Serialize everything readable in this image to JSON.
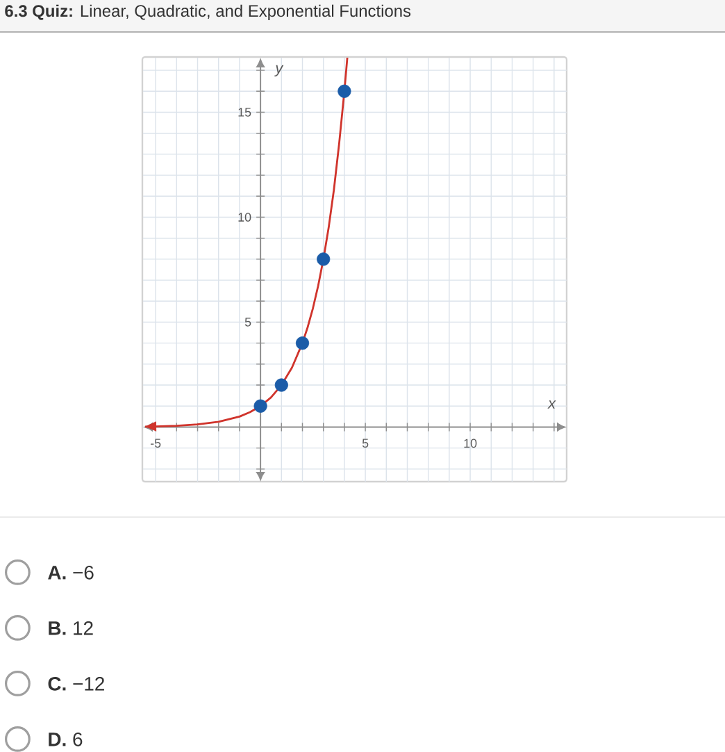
{
  "chart_data": {
    "type": "line",
    "title": "**6.3 Quiz:** Linear, Quadratic, and Exponential Functions",
    "xlabel": "x",
    "ylabel": "y",
    "xlim": [
      -5.6,
      14.6
    ],
    "ylim": [
      -2.6,
      17.6
    ],
    "xticks": [
      -5,
      {
        "value": -4,
        "label": null
      },
      {
        "value": -3,
        "label": null
      },
      {
        "value": -2,
        "label": null
      },
      {
        "value": -1,
        "label": null
      },
      {
        "value": 0,
        "label": null
      },
      {
        "value": 1,
        "label": null
      },
      {
        "value": 2,
        "label": null
      },
      {
        "value": 3,
        "label": null
      },
      {
        "value": 4,
        "label": null
      },
      5,
      {
        "value": 6,
        "label": null
      },
      {
        "value": 7,
        "label": null
      },
      {
        "value": 8,
        "label": null
      },
      {
        "value": 9,
        "label": null
      },
      10,
      {
        "value": 11,
        "label": null
      },
      {
        "value": 12,
        "label": null
      },
      {
        "value": 13,
        "label": null
      },
      {
        "value": 14,
        "label": null
      }
    ],
    "yticks": [
      {
        "value": -2,
        "label": null
      },
      {
        "value": -1,
        "label": null
      },
      {
        "value": 0,
        "label": null
      },
      {
        "value": 1,
        "label": null
      },
      {
        "value": 2,
        "label": null
      },
      {
        "value": 3,
        "label": null
      },
      {
        "value": 4,
        "label": null
      },
      5,
      {
        "value": 6,
        "label": null
      },
      {
        "value": 7,
        "label": null
      },
      {
        "value": 8,
        "label": null
      },
      {
        "value": 9,
        "label": null
      },
      10,
      {
        "value": 11,
        "label": null
      },
      {
        "value": 12,
        "label": null
      },
      {
        "value": 13,
        "label": null
      },
      {
        "value": 14,
        "label": null
      },
      15,
      {
        "value": 16,
        "label": null
      },
      {
        "value": 17,
        "label": null
      }
    ],
    "grid": true,
    "series": [
      {
        "color": "#d0342c",
        "line_style": "solid",
        "marker": "none",
        "x": [
          -5.5,
          -5,
          -4,
          -3,
          -2,
          -1,
          -0.5,
          0,
          0.5,
          1,
          1.5,
          2,
          2.25,
          2.5,
          2.75,
          3,
          3.25,
          3.5,
          3.75,
          4,
          4.14
        ],
        "values": [
          0.02,
          0.03,
          0.06,
          0.13,
          0.25,
          0.5,
          0.71,
          1,
          1.41,
          2,
          2.83,
          4,
          4.76,
          5.66,
          6.73,
          8,
          9.5,
          11.3,
          13.5,
          16,
          17.6
        ]
      },
      {
        "type": "scatter",
        "color": "#1b5ca8",
        "marker": "circle",
        "x": [
          0,
          1,
          2,
          3,
          4
        ],
        "values": [
          1,
          2,
          4,
          8,
          16
        ]
      }
    ],
    "annotations": [
      "**A.** −6",
      "**B.** 12",
      "**C.** −12",
      "**D.** 6"
    ]
  }
}
